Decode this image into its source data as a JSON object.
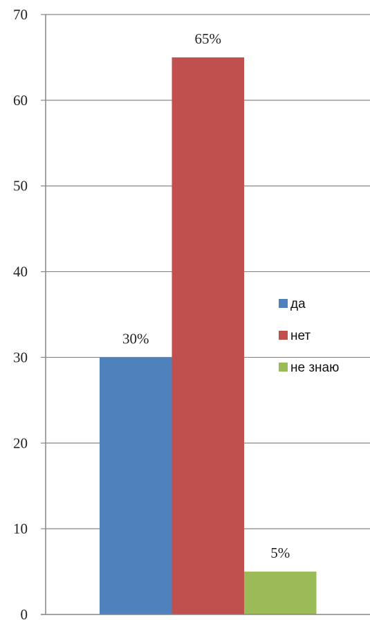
{
  "chart_data": {
    "type": "bar",
    "title": "",
    "xlabel": "",
    "ylabel": "",
    "ylim": [
      0,
      70
    ],
    "yticks": [
      0,
      10,
      20,
      30,
      40,
      50,
      60,
      70
    ],
    "grid": true,
    "legend_position": "right",
    "series": [
      {
        "name": "да",
        "value": 30,
        "label": "30%",
        "color": "#4F81BD"
      },
      {
        "name": "нет",
        "value": 65,
        "label": "65%",
        "color": "#C0504D"
      },
      {
        "name": "не знаю",
        "value": 5,
        "label": "5%",
        "color": "#9BBB59"
      }
    ]
  }
}
